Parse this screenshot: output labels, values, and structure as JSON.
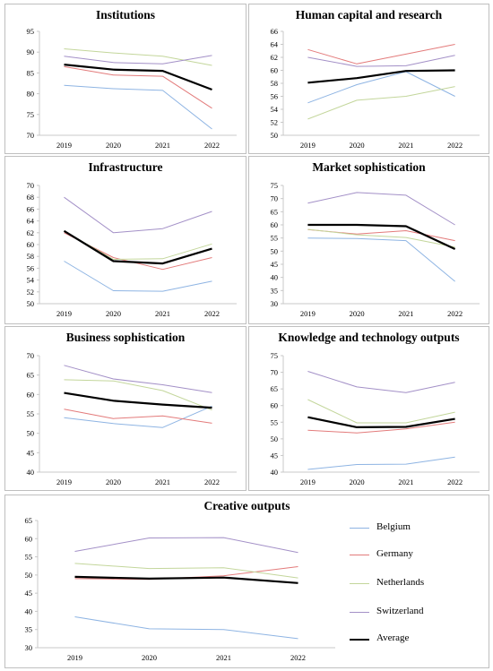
{
  "colors": {
    "Belgium": "#8eb4e3",
    "Germany": "#e37b7b",
    "Netherlands": "#c3d69b",
    "Switzerland": "#a390c7",
    "Average": "#000000"
  },
  "legend": {
    "items": [
      "Belgium",
      "Germany",
      "Netherlands",
      "Switzerland",
      "Average"
    ]
  },
  "chart_data": [
    {
      "type": "line",
      "title": "Institutions",
      "categories": [
        "2019",
        "2020",
        "2021",
        "2022"
      ],
      "ylim": [
        70,
        95
      ],
      "yticks": [
        70,
        75,
        80,
        85,
        90,
        95
      ],
      "series": [
        {
          "name": "Belgium",
          "values": [
            82,
            81.2,
            80.8,
            71.5
          ]
        },
        {
          "name": "Germany",
          "values": [
            86.5,
            84.5,
            84.2,
            76.5
          ]
        },
        {
          "name": "Netherlands",
          "values": [
            90.8,
            89.8,
            89,
            86.8
          ]
        },
        {
          "name": "Switzerland",
          "values": [
            89,
            87.5,
            87.2,
            89.2
          ]
        },
        {
          "name": "Average",
          "values": [
            87,
            85.8,
            85.5,
            81
          ]
        }
      ]
    },
    {
      "type": "line",
      "title": "Human capital and research",
      "categories": [
        "2019",
        "2020",
        "2021",
        "2022"
      ],
      "ylim": [
        50,
        66
      ],
      "yticks": [
        50,
        52,
        54,
        56,
        58,
        60,
        62,
        64,
        66
      ],
      "series": [
        {
          "name": "Belgium",
          "values": [
            55,
            57.8,
            59.8,
            56
          ]
        },
        {
          "name": "Germany",
          "values": [
            63.2,
            61,
            62.5,
            64
          ]
        },
        {
          "name": "Netherlands",
          "values": [
            52.5,
            55.4,
            56,
            57.5
          ]
        },
        {
          "name": "Switzerland",
          "values": [
            62,
            60.6,
            60.7,
            62.3
          ]
        },
        {
          "name": "Average",
          "values": [
            58.1,
            58.8,
            59.9,
            60
          ]
        }
      ]
    },
    {
      "type": "line",
      "title": "Infrastructure",
      "categories": [
        "2019",
        "2020",
        "2021",
        "2022"
      ],
      "ylim": [
        50,
        70
      ],
      "yticks": [
        50,
        52,
        54,
        56,
        58,
        60,
        62,
        64,
        66,
        68,
        70
      ],
      "series": [
        {
          "name": "Belgium",
          "values": [
            57.2,
            52.2,
            52.1,
            53.8
          ]
        },
        {
          "name": "Germany",
          "values": [
            62,
            57.8,
            55.8,
            57.8
          ]
        },
        {
          "name": "Netherlands",
          "values": [
            62.3,
            57.5,
            57.6,
            60.1
          ]
        },
        {
          "name": "Switzerland",
          "values": [
            68,
            62,
            62.7,
            65.6
          ]
        },
        {
          "name": "Average",
          "values": [
            62.3,
            57.2,
            56.8,
            59.3
          ]
        }
      ]
    },
    {
      "type": "line",
      "title": "Market sophistication",
      "categories": [
        "2019",
        "2020",
        "2021",
        "2022"
      ],
      "ylim": [
        30,
        75
      ],
      "yticks": [
        30,
        35,
        40,
        45,
        50,
        55,
        60,
        65,
        70,
        75
      ],
      "series": [
        {
          "name": "Belgium",
          "values": [
            55,
            54.8,
            54,
            38.5
          ]
        },
        {
          "name": "Germany",
          "values": [
            58.2,
            56.5,
            57.8,
            54
          ]
        },
        {
          "name": "Netherlands",
          "values": [
            58.3,
            56.2,
            55.2,
            51.5
          ]
        },
        {
          "name": "Switzerland",
          "values": [
            68.3,
            72.3,
            71.3,
            60
          ]
        },
        {
          "name": "Average",
          "values": [
            60,
            60,
            59.5,
            50.8
          ]
        }
      ]
    },
    {
      "type": "line",
      "title": "Business sophistication",
      "categories": [
        "2019",
        "2020",
        "2021",
        "2022"
      ],
      "ylim": [
        40,
        70
      ],
      "yticks": [
        40,
        45,
        50,
        55,
        60,
        65,
        70
      ],
      "series": [
        {
          "name": "Belgium",
          "values": [
            54,
            52.5,
            51.5,
            57
          ]
        },
        {
          "name": "Germany",
          "values": [
            56.2,
            53.8,
            54.5,
            52.6
          ]
        },
        {
          "name": "Netherlands",
          "values": [
            63.8,
            63.5,
            61,
            56
          ]
        },
        {
          "name": "Switzerland",
          "values": [
            67.5,
            64,
            62.5,
            60.5
          ]
        },
        {
          "name": "Average",
          "values": [
            60.4,
            58.4,
            57.4,
            56.6
          ]
        }
      ]
    },
    {
      "type": "line",
      "title": "Knowledge and technology outputs",
      "categories": [
        "2019",
        "2020",
        "2021",
        "2022"
      ],
      "ylim": [
        40,
        75
      ],
      "yticks": [
        40,
        45,
        50,
        55,
        60,
        65,
        70,
        75
      ],
      "series": [
        {
          "name": "Belgium",
          "values": [
            40.8,
            42.3,
            42.4,
            44.5
          ]
        },
        {
          "name": "Germany",
          "values": [
            52.6,
            51.8,
            53,
            55
          ]
        },
        {
          "name": "Netherlands",
          "values": [
            61.8,
            54.8,
            54.8,
            58
          ]
        },
        {
          "name": "Switzerland",
          "values": [
            70.3,
            65.6,
            63.9,
            67
          ]
        },
        {
          "name": "Average",
          "values": [
            56.5,
            53.5,
            53.6,
            56
          ]
        }
      ]
    },
    {
      "type": "line",
      "title": "Creative outputs",
      "categories": [
        "2019",
        "2020",
        "2021",
        "2022"
      ],
      "ylim": [
        30,
        65
      ],
      "yticks": [
        30,
        35,
        40,
        45,
        50,
        55,
        60,
        65
      ],
      "series": [
        {
          "name": "Belgium",
          "values": [
            38.5,
            35.2,
            35,
            32.5
          ]
        },
        {
          "name": "Germany",
          "values": [
            49,
            48.8,
            49.8,
            52.3
          ]
        },
        {
          "name": "Netherlands",
          "values": [
            53.2,
            51.8,
            52,
            49.2
          ]
        },
        {
          "name": "Switzerland",
          "values": [
            56.5,
            60.2,
            60.3,
            56.2
          ]
        },
        {
          "name": "Average",
          "values": [
            49.5,
            49,
            49.3,
            47.8
          ]
        }
      ]
    }
  ]
}
